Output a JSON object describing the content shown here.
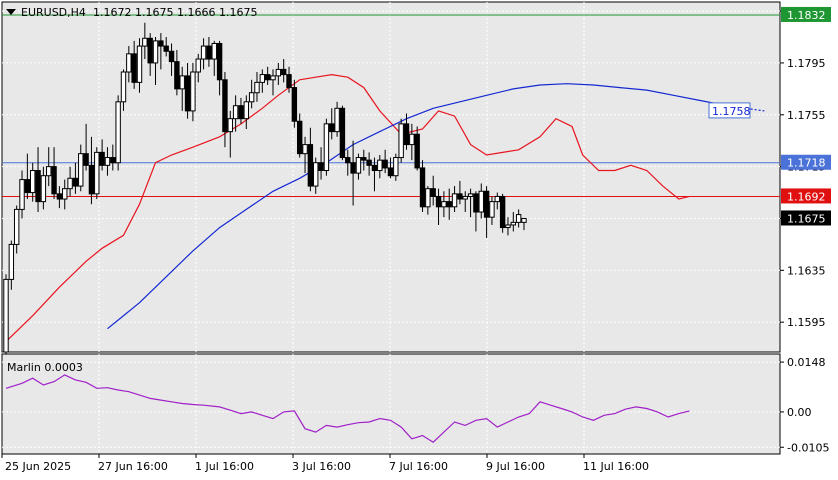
{
  "header": {
    "symbol": "EURUSD,H4",
    "ohlc": "1.1672 1.1675 1.1666 1.1675"
  },
  "oscillator": {
    "label": "Marlin 0.0003",
    "ticks": [
      "0.0148",
      "0.00",
      "-0.0105"
    ]
  },
  "colors": {
    "background": "#e8e8e8",
    "bull_candle": "#ffffff",
    "bear_candle": "#000000",
    "ma_fast": "#e8141e",
    "ma_slow": "#1428d2",
    "oscillator_line": "#a020c8",
    "level_green": "#1e9632",
    "level_blue": "#4a72d8",
    "level_red": "#e01010",
    "current_price": "#000000"
  },
  "chart_data": {
    "type": "candlestick",
    "symbol": "EURUSD",
    "timeframe": "H4",
    "ylim": [
      1.1572,
      1.1842
    ],
    "price_ticks": [
      "1.1835",
      "1.1795",
      "1.1755",
      "1.1715",
      "1.1675",
      "1.1635",
      "1.1595"
    ],
    "x_ticks": [
      "25 Jun 2025",
      "27 Jun 16:00",
      "1 Jul 16:00",
      "3 Jul 16:00",
      "7 Jul 16:00",
      "9 Jul 16:00",
      "11 Jul 16:00"
    ],
    "levels": [
      {
        "label": "1.1832",
        "value": 1.1832,
        "color": "green"
      },
      {
        "label": "1.1758",
        "value": 1.1758,
        "color": "blue",
        "style": "dotted",
        "projected": true
      },
      {
        "label": "1.1718",
        "value": 1.1718,
        "color": "blue"
      },
      {
        "label": "1.1692",
        "value": 1.1692,
        "color": "red"
      },
      {
        "label": "1.1675",
        "value": 1.1675,
        "color": "black",
        "current": true
      }
    ],
    "candles": [
      [
        1.1572,
        1.1632,
        1.157,
        1.1628
      ],
      [
        1.1628,
        1.1658,
        1.162,
        1.1655
      ],
      [
        1.1655,
        1.1685,
        1.1648,
        1.1682
      ],
      [
        1.1682,
        1.1712,
        1.1675,
        1.1705
      ],
      [
        1.1705,
        1.1725,
        1.169,
        1.1695
      ],
      [
        1.1695,
        1.1718,
        1.1688,
        1.1712
      ],
      [
        1.1712,
        1.173,
        1.168,
        1.1688
      ],
      [
        1.1688,
        1.1715,
        1.1682,
        1.1708
      ],
      [
        1.1708,
        1.173,
        1.17,
        1.1715
      ],
      [
        1.1715,
        1.173,
        1.169,
        1.1694
      ],
      [
        1.1694,
        1.17,
        1.1683,
        1.169
      ],
      [
        1.169,
        1.1705,
        1.1682,
        1.1698
      ],
      [
        1.1698,
        1.1715,
        1.1692,
        1.1706
      ],
      [
        1.1706,
        1.1718,
        1.1694,
        1.17
      ],
      [
        1.17,
        1.1732,
        1.1696,
        1.1725
      ],
      [
        1.1725,
        1.1748,
        1.1712,
        1.1716
      ],
      [
        1.1716,
        1.1738,
        1.1686,
        1.1694
      ],
      [
        1.1694,
        1.173,
        1.169,
        1.1726
      ],
      [
        1.1726,
        1.1736,
        1.1712,
        1.1716
      ],
      [
        1.1716,
        1.173,
        1.1708,
        1.1722
      ],
      [
        1.1722,
        1.1732,
        1.1712,
        1.1718
      ],
      [
        1.1718,
        1.177,
        1.1712,
        1.1765
      ],
      [
        1.1765,
        1.179,
        1.1758,
        1.1788
      ],
      [
        1.1788,
        1.1808,
        1.178,
        1.1802
      ],
      [
        1.1802,
        1.1812,
        1.1775,
        1.178
      ],
      [
        1.178,
        1.1814,
        1.1772,
        1.1808
      ],
      [
        1.1808,
        1.1826,
        1.1798,
        1.1814
      ],
      [
        1.1814,
        1.1818,
        1.1785,
        1.1795
      ],
      [
        1.1795,
        1.1815,
        1.1778,
        1.1812
      ],
      [
        1.1812,
        1.1818,
        1.179,
        1.1808
      ],
      [
        1.1808,
        1.1815,
        1.18,
        1.1804
      ],
      [
        1.1804,
        1.181,
        1.1785,
        1.1796
      ],
      [
        1.1796,
        1.1805,
        1.177,
        1.1775
      ],
      [
        1.1775,
        1.1792,
        1.1758,
        1.1785
      ],
      [
        1.1785,
        1.1795,
        1.1752,
        1.1758
      ],
      [
        1.1758,
        1.1795,
        1.175,
        1.1788
      ],
      [
        1.1788,
        1.1802,
        1.178,
        1.1798
      ],
      [
        1.1798,
        1.1814,
        1.179,
        1.1808
      ],
      [
        1.1808,
        1.1815,
        1.1792,
        1.1798
      ],
      [
        1.1798,
        1.1812,
        1.1785,
        1.181
      ],
      [
        1.181,
        1.1812,
        1.177,
        1.1782
      ],
      [
        1.1782,
        1.1788,
        1.173,
        1.1742
      ],
      [
        1.1742,
        1.1758,
        1.1722,
        1.1752
      ],
      [
        1.1752,
        1.177,
        1.1742,
        1.1762
      ],
      [
        1.1762,
        1.1768,
        1.1748,
        1.1752
      ],
      [
        1.1752,
        1.177,
        1.1744,
        1.1765
      ],
      [
        1.1765,
        1.1782,
        1.176,
        1.1772
      ],
      [
        1.1772,
        1.1788,
        1.1765,
        1.178
      ],
      [
        1.178,
        1.179,
        1.1772,
        1.1786
      ],
      [
        1.1786,
        1.1792,
        1.1778,
        1.1782
      ],
      [
        1.1782,
        1.179,
        1.177,
        1.1785
      ],
      [
        1.1785,
        1.1795,
        1.1778,
        1.179
      ],
      [
        1.179,
        1.1798,
        1.178,
        1.1786
      ],
      [
        1.1786,
        1.1792,
        1.1772,
        1.1776
      ],
      [
        1.1776,
        1.1782,
        1.1745,
        1.175
      ],
      [
        1.175,
        1.1756,
        1.1722,
        1.1725
      ],
      [
        1.1725,
        1.1738,
        1.171,
        1.1732
      ],
      [
        1.1732,
        1.1745,
        1.1696,
        1.17
      ],
      [
        1.17,
        1.1722,
        1.1694,
        1.1718
      ],
      [
        1.1718,
        1.173,
        1.1705,
        1.1712
      ],
      [
        1.1712,
        1.1752,
        1.1708,
        1.1748
      ],
      [
        1.1748,
        1.176,
        1.1736,
        1.1742
      ],
      [
        1.1742,
        1.1765,
        1.1738,
        1.176
      ],
      [
        1.176,
        1.1762,
        1.172,
        1.1722
      ],
      [
        1.1722,
        1.1728,
        1.1708,
        1.1718
      ],
      [
        1.1718,
        1.1735,
        1.1685,
        1.171
      ],
      [
        1.171,
        1.1725,
        1.1705,
        1.1722
      ],
      [
        1.1722,
        1.1728,
        1.1712,
        1.172
      ],
      [
        1.172,
        1.1726,
        1.1708,
        1.1716
      ],
      [
        1.1716,
        1.1722,
        1.1696,
        1.1712
      ],
      [
        1.1712,
        1.1724,
        1.1706,
        1.172
      ],
      [
        1.172,
        1.1728,
        1.171,
        1.1714
      ],
      [
        1.1714,
        1.1722,
        1.1706,
        1.1708
      ],
      [
        1.1708,
        1.1725,
        1.1704,
        1.1722
      ],
      [
        1.1722,
        1.1752,
        1.1718,
        1.1748
      ],
      [
        1.1748,
        1.1756,
        1.1728,
        1.1732
      ],
      [
        1.1732,
        1.1748,
        1.172,
        1.174
      ],
      [
        1.174,
        1.1746,
        1.1712,
        1.1714
      ],
      [
        1.1714,
        1.172,
        1.168,
        1.1684
      ],
      [
        1.1684,
        1.17,
        1.1678,
        1.1698
      ],
      [
        1.1698,
        1.1708,
        1.1685,
        1.1692
      ],
      [
        1.1692,
        1.1698,
        1.167,
        1.1684
      ],
      [
        1.1684,
        1.1696,
        1.1676,
        1.1688
      ],
      [
        1.1688,
        1.1698,
        1.1674,
        1.1684
      ],
      [
        1.1684,
        1.17,
        1.168,
        1.1694
      ],
      [
        1.1694,
        1.1704,
        1.1686,
        1.169
      ],
      [
        1.169,
        1.1696,
        1.168,
        1.1692
      ],
      [
        1.1692,
        1.1698,
        1.1676,
        1.1694
      ],
      [
        1.1694,
        1.1696,
        1.1665,
        1.168
      ],
      [
        1.168,
        1.1702,
        1.1675,
        1.1696
      ],
      [
        1.1696,
        1.17,
        1.166,
        1.1676
      ],
      [
        1.1676,
        1.1692,
        1.167,
        1.1688
      ],
      [
        1.1688,
        1.1695,
        1.1682,
        1.1692
      ],
      [
        1.1692,
        1.1694,
        1.1664,
        1.1668
      ],
      [
        1.1668,
        1.1676,
        1.1662,
        1.167
      ],
      [
        1.167,
        1.168,
        1.1665,
        1.1672
      ],
      [
        1.1672,
        1.1682,
        1.1668,
        1.1678
      ],
      [
        1.1672,
        1.1675,
        1.1666,
        1.1675
      ]
    ],
    "ma_fast": [
      [
        0,
        1.158
      ],
      [
        5,
        1.16
      ],
      [
        10,
        1.1622
      ],
      [
        15,
        1.1642
      ],
      [
        18,
        1.1652
      ],
      [
        22,
        1.1662
      ],
      [
        25,
        1.1686
      ],
      [
        28,
        1.1718
      ],
      [
        31,
        1.1724
      ],
      [
        35,
        1.173
      ],
      [
        40,
        1.1738
      ],
      [
        44,
        1.1748
      ],
      [
        48,
        1.176
      ],
      [
        51,
        1.177
      ],
      [
        55,
        1.1782
      ],
      [
        58,
        1.1784
      ],
      [
        61,
        1.1786
      ],
      [
        64,
        1.1784
      ],
      [
        67,
        1.1776
      ],
      [
        70,
        1.1758
      ],
      [
        74,
        1.174
      ],
      [
        78,
        1.1744
      ],
      [
        81,
        1.1758
      ],
      [
        84,
        1.1754
      ],
      [
        87,
        1.1732
      ],
      [
        90,
        1.1724
      ],
      [
        93,
        1.1726
      ],
      [
        96,
        1.1728
      ],
      [
        100,
        1.1738
      ],
      [
        103,
        1.1752
      ],
      [
        106,
        1.1746
      ],
      [
        108,
        1.1724
      ],
      [
        111,
        1.1712
      ],
      [
        114,
        1.1712
      ],
      [
        117,
        1.1716
      ],
      [
        120,
        1.1712
      ],
      [
        123,
        1.17
      ],
      [
        126,
        1.169
      ],
      [
        128,
        1.1692
      ]
    ],
    "ma_slow": [
      [
        19,
        1.159
      ],
      [
        25,
        1.161
      ],
      [
        30,
        1.163
      ],
      [
        35,
        1.165
      ],
      [
        40,
        1.1668
      ],
      [
        45,
        1.1682
      ],
      [
        50,
        1.1696
      ],
      [
        55,
        1.1706
      ],
      [
        60,
        1.1718
      ],
      [
        65,
        1.1732
      ],
      [
        70,
        1.1742
      ],
      [
        75,
        1.1752
      ],
      [
        80,
        1.176
      ],
      [
        85,
        1.1765
      ],
      [
        90,
        1.177
      ],
      [
        95,
        1.1775
      ],
      [
        100,
        1.1778
      ],
      [
        105,
        1.1779
      ],
      [
        110,
        1.1778
      ],
      [
        115,
        1.1776
      ],
      [
        120,
        1.1774
      ],
      [
        125,
        1.177
      ],
      [
        130,
        1.1766
      ],
      [
        135,
        1.1762
      ]
    ],
    "ma_slow_projection": [
      [
        135,
        1.1762
      ],
      [
        142,
        1.1758
      ]
    ],
    "oscillator": {
      "name": "Marlin",
      "value": 0.0003,
      "ylim": [
        -0.0125,
        0.0172
      ],
      "values": [
        [
          0,
          0.007
        ],
        [
          3,
          0.0085
        ],
        [
          5,
          0.01
        ],
        [
          7,
          0.008
        ],
        [
          9,
          0.009
        ],
        [
          11,
          0.011
        ],
        [
          13,
          0.0095
        ],
        [
          15,
          0.0088
        ],
        [
          17,
          0.007
        ],
        [
          19,
          0.0072
        ],
        [
          21,
          0.0065
        ],
        [
          23,
          0.006
        ],
        [
          25,
          0.005
        ],
        [
          27,
          0.004
        ],
        [
          29,
          0.0035
        ],
        [
          31,
          0.003
        ],
        [
          33,
          0.0025
        ],
        [
          35,
          0.0022
        ],
        [
          37,
          0.002
        ],
        [
          40,
          0.0015
        ],
        [
          42,
          0.0005
        ],
        [
          44,
          -0.0005
        ],
        [
          46,
          0.0
        ],
        [
          48,
          -0.001
        ],
        [
          50,
          -0.002
        ],
        [
          52,
          0.0
        ],
        [
          54,
          0.0003
        ],
        [
          56,
          -0.005
        ],
        [
          58,
          -0.006
        ],
        [
          60,
          -0.004
        ],
        [
          62,
          -0.0045
        ],
        [
          64,
          -0.0038
        ],
        [
          66,
          -0.0032
        ],
        [
          68,
          -0.003
        ],
        [
          70,
          -0.002
        ],
        [
          72,
          -0.0025
        ],
        [
          74,
          -0.0045
        ],
        [
          76,
          -0.008
        ],
        [
          78,
          -0.007
        ],
        [
          80,
          -0.009
        ],
        [
          82,
          -0.006
        ],
        [
          84,
          -0.003
        ],
        [
          86,
          -0.004
        ],
        [
          88,
          -0.0025
        ],
        [
          90,
          -0.002
        ],
        [
          92,
          -0.0045
        ],
        [
          94,
          -0.003
        ],
        [
          96,
          -0.0015
        ],
        [
          98,
          -0.0005
        ],
        [
          100,
          0.003
        ],
        [
          102,
          0.002
        ],
        [
          104,
          0.001
        ],
        [
          106,
          0.0
        ],
        [
          108,
          -0.0015
        ],
        [
          110,
          -0.0025
        ],
        [
          112,
          -0.001
        ],
        [
          114,
          -0.0005
        ],
        [
          116,
          0.0008
        ],
        [
          118,
          0.0015
        ],
        [
          120,
          0.001
        ],
        [
          122,
          0.0
        ],
        [
          124,
          -0.0015
        ],
        [
          126,
          -0.0005
        ],
        [
          128,
          0.0003
        ]
      ]
    }
  }
}
